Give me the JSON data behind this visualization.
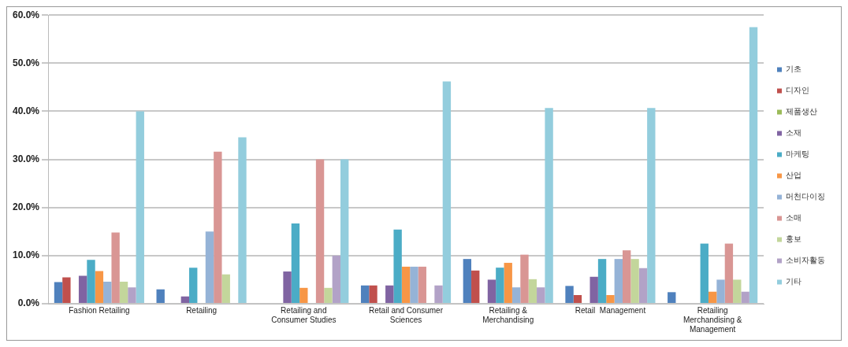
{
  "chart_data": {
    "type": "bar",
    "categories": [
      "Fashion Retailing",
      "Retailing",
      "Retailing and Consumer Studies",
      "Retail and Consumer Sciences",
      "Retailing & Merchandising",
      "Retail  Management",
      "Retailing Merchandising & Management"
    ],
    "ylim": [
      0,
      60
    ],
    "yticks": [
      {
        "value": 0,
        "label": "0.0%"
      },
      {
        "value": 10,
        "label": "10.0%"
      },
      {
        "value": 20,
        "label": "20.0%"
      },
      {
        "value": 30,
        "label": "30.0%"
      },
      {
        "value": 40,
        "label": "40.0%"
      },
      {
        "value": 50,
        "label": "50.0%"
      },
      {
        "value": 60,
        "label": "60.0%"
      }
    ],
    "grid": "y",
    "legend": "right",
    "series": [
      {
        "name": "기초",
        "color": "#4f81bd",
        "values": [
          4.5,
          3.0,
          null,
          3.8,
          9.3,
          3.7,
          2.4
        ]
      },
      {
        "name": "디자인",
        "color": "#c0504d",
        "values": [
          5.5,
          null,
          null,
          3.8,
          6.9,
          1.8,
          null
        ]
      },
      {
        "name": "제품생산",
        "color": "#9bbb59",
        "values": [
          null,
          null,
          null,
          null,
          null,
          null,
          null
        ]
      },
      {
        "name": "소재",
        "color": "#8064a2",
        "values": [
          5.8,
          1.5,
          6.7,
          3.8,
          5.0,
          5.6,
          null
        ]
      },
      {
        "name": "마케팅",
        "color": "#4bacc6",
        "values": [
          9.1,
          7.5,
          16.7,
          15.4,
          7.5,
          9.3,
          12.5
        ]
      },
      {
        "name": "산업",
        "color": "#f79646",
        "values": [
          6.8,
          null,
          3.3,
          7.7,
          8.5,
          1.8,
          2.5
        ]
      },
      {
        "name": "머천다이징",
        "color": "#95b3d7",
        "values": [
          4.6,
          15.0,
          null,
          7.7,
          3.4,
          9.3,
          5.0
        ]
      },
      {
        "name": "소매",
        "color": "#d99694",
        "values": [
          14.8,
          31.6,
          30.0,
          7.7,
          10.2,
          11.1,
          12.5
        ]
      },
      {
        "name": "홍보",
        "color": "#c3d69b",
        "values": [
          4.6,
          6.1,
          3.3,
          null,
          5.1,
          9.3,
          5.0
        ]
      },
      {
        "name": "소비자활동",
        "color": "#b2a2c7",
        "values": [
          3.4,
          null,
          10.0,
          3.8,
          3.4,
          7.4,
          2.5
        ]
      },
      {
        "name": "기타",
        "color": "#93cddd",
        "values": [
          40.0,
          34.6,
          30.0,
          46.2,
          40.7,
          40.7,
          57.5
        ]
      }
    ]
  }
}
